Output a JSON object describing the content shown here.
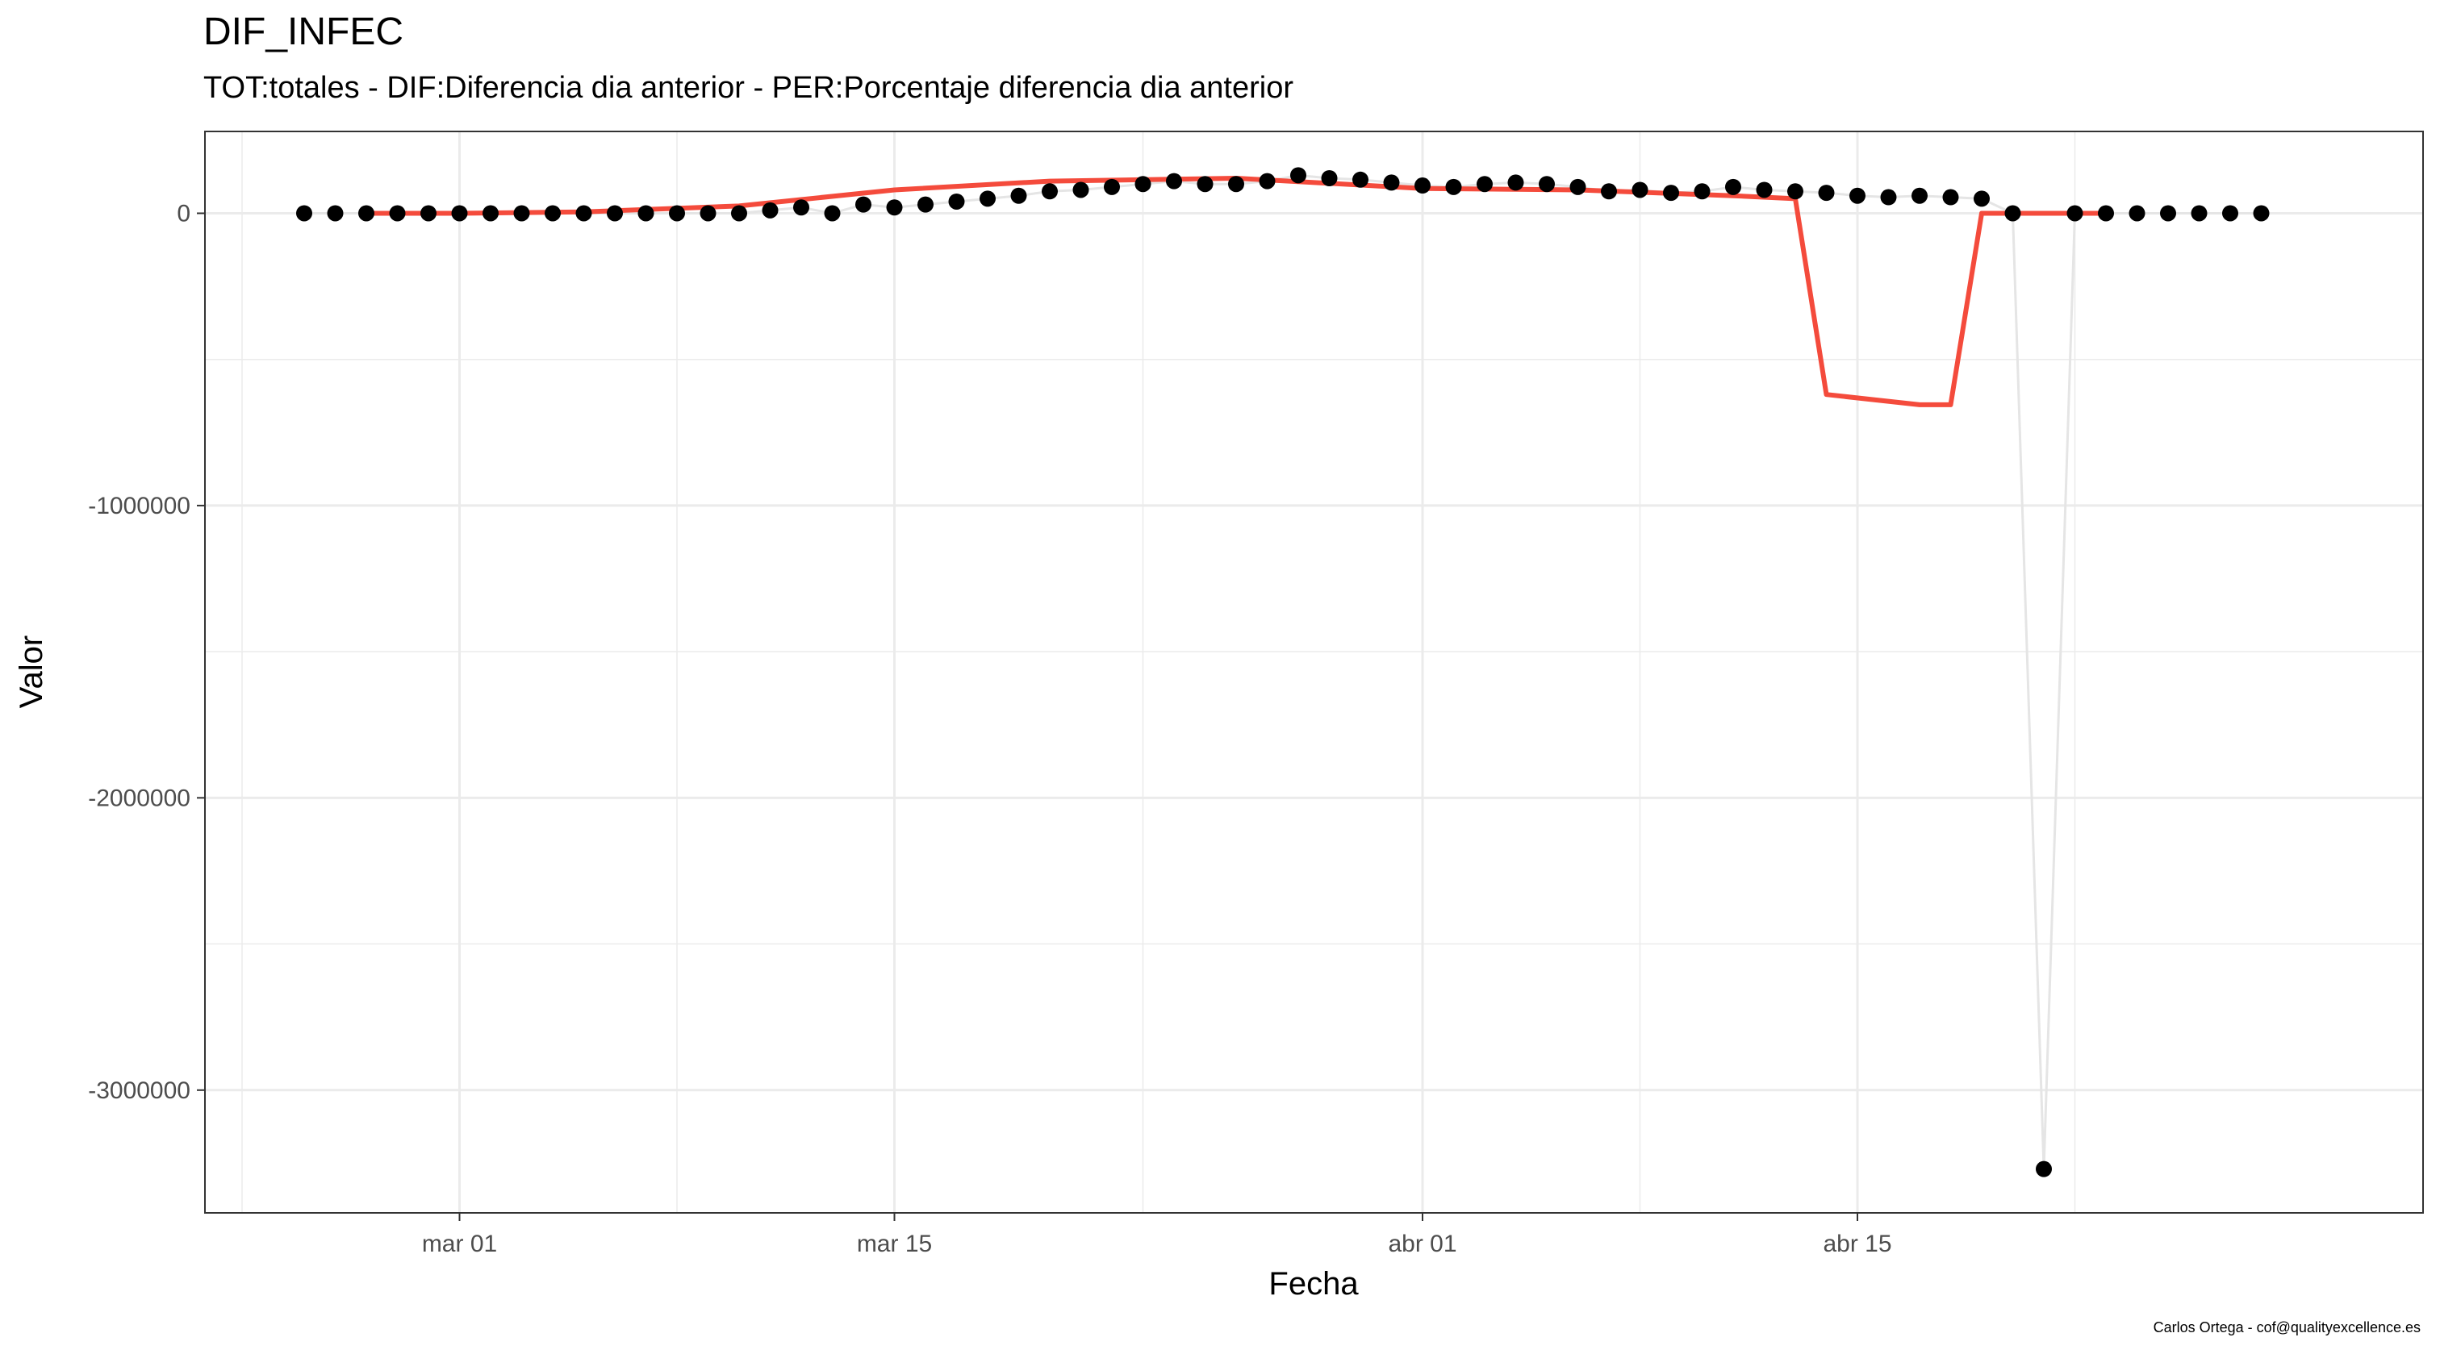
{
  "chart_data": {
    "type": "scatter",
    "title": "DIF_INFEC",
    "subtitle": "TOT:totales - DIF:Diferencia dia anterior - PER:Porcentaje diferencia dia anterior",
    "xlabel": "Fecha",
    "ylabel": "Valor",
    "caption": "Carlos Ortega - cof@qualityexcellence.es",
    "x_tick_labels": [
      "mar 01",
      "mar 15",
      "abr 01",
      "abr 15"
    ],
    "y_tick_labels": [
      "0",
      "-1000000",
      "-2000000",
      "-3000000"
    ],
    "y_tick_values": [
      0,
      -1000000,
      -2000000,
      -3000000
    ],
    "ylim": [
      -3420000,
      280000
    ],
    "grid": true,
    "colors": {
      "points": "#000000",
      "connector": "#e5e5e5",
      "trend": "#f44b3c",
      "grid": "#ebebeb"
    },
    "series": [
      {
        "kind": "points",
        "x": [
          "2020-02-25",
          "2020-02-26",
          "2020-02-27",
          "2020-02-28",
          "2020-02-29",
          "2020-03-01",
          "2020-03-02",
          "2020-03-03",
          "2020-03-04",
          "2020-03-05",
          "2020-03-06",
          "2020-03-07",
          "2020-03-08",
          "2020-03-09",
          "2020-03-10",
          "2020-03-11",
          "2020-03-12",
          "2020-03-13",
          "2020-03-14",
          "2020-03-15",
          "2020-03-16",
          "2020-03-17",
          "2020-03-18",
          "2020-03-19",
          "2020-03-20",
          "2020-03-21",
          "2020-03-22",
          "2020-03-23",
          "2020-03-24",
          "2020-03-25",
          "2020-03-26",
          "2020-03-27",
          "2020-03-28",
          "2020-03-29",
          "2020-03-30",
          "2020-03-31",
          "2020-04-01",
          "2020-04-02",
          "2020-04-03",
          "2020-04-04",
          "2020-04-05",
          "2020-04-06",
          "2020-04-07",
          "2020-04-08",
          "2020-04-09",
          "2020-04-10",
          "2020-04-11",
          "2020-04-12",
          "2020-04-13",
          "2020-04-14",
          "2020-04-15",
          "2020-04-16",
          "2020-04-17",
          "2020-04-18",
          "2020-04-19",
          "2020-04-20",
          "2020-04-21",
          "2020-04-22",
          "2020-04-23",
          "2020-04-24",
          "2020-04-25",
          "2020-04-26",
          "2020-04-27",
          "2020-04-28"
        ],
        "y": [
          0,
          0,
          0,
          0,
          0,
          0,
          0,
          0,
          0,
          0,
          0,
          0,
          0,
          0,
          0,
          10000,
          20000,
          0,
          30000,
          20000,
          30000,
          40000,
          50000,
          60000,
          75000,
          80000,
          90000,
          100000,
          110000,
          100000,
          100000,
          110000,
          130000,
          120000,
          115000,
          105000,
          95000,
          90000,
          100000,
          105000,
          100000,
          90000,
          75000,
          80000,
          70000,
          75000,
          90000,
          80000,
          75000,
          70000,
          60000,
          55000,
          60000,
          55000,
          50000,
          0,
          -3270000,
          0,
          0,
          0,
          0,
          0,
          0,
          0
        ]
      },
      {
        "kind": "trend",
        "name": "",
        "x": [
          "2020-02-27",
          "2020-03-01",
          "2020-03-05",
          "2020-03-10",
          "2020-03-15",
          "2020-03-20",
          "2020-03-26",
          "2020-04-01",
          "2020-04-06",
          "2020-04-11",
          "2020-04-13",
          "2020-04-14",
          "2020-04-17",
          "2020-04-18",
          "2020-04-19",
          "2020-04-23"
        ],
        "y": [
          0,
          0,
          5000,
          25000,
          80000,
          110000,
          120000,
          85000,
          80000,
          60000,
          50000,
          -620000,
          -655000,
          -655000,
          0,
          0
        ]
      }
    ]
  }
}
